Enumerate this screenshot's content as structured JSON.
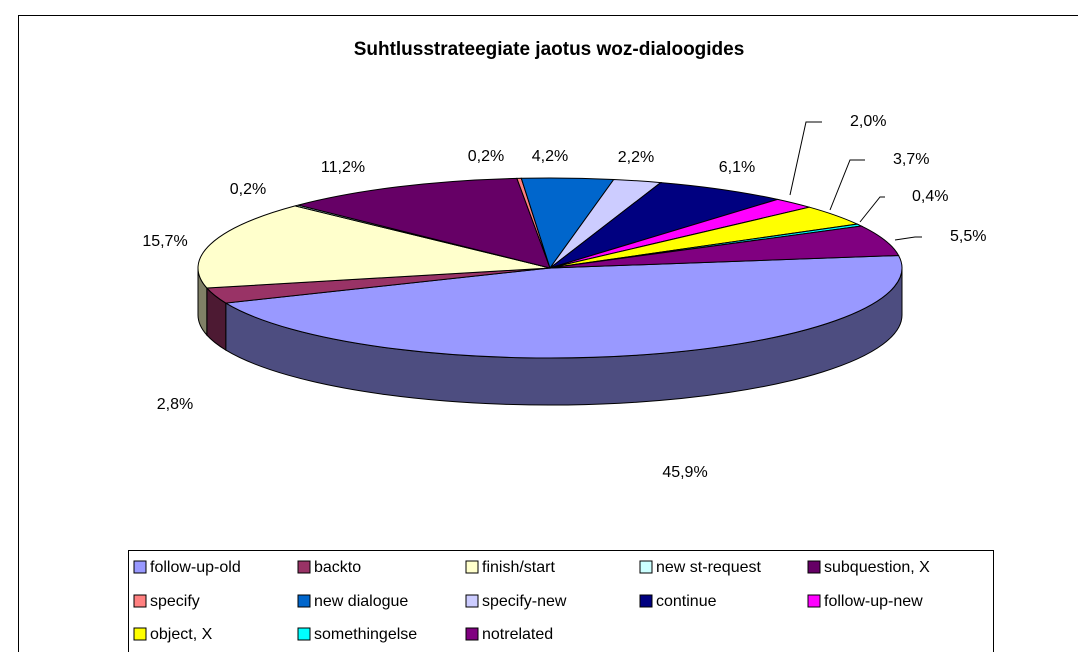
{
  "chart_data": {
    "type": "pie3d",
    "title": "Suhtlusstrateegiate jaotus woz-dialoogides",
    "categories": [
      "follow-up-old",
      "backto",
      "finish/start",
      "new st-request",
      "subquestion, X",
      "specify",
      "new dialogue",
      "specify-new",
      "continue",
      "follow-up-new",
      "object, X",
      "somethingelse",
      "notrelated"
    ],
    "values": [
      45.9,
      2.8,
      15.7,
      0.2,
      11.2,
      0.2,
      4.2,
      2.2,
      6.1,
      2.0,
      3.7,
      0.4,
      5.5
    ],
    "value_labels": [
      "45,9%",
      "2,8%",
      "15,7%",
      "0,2%",
      "11,2%",
      "0,2%",
      "4,2%",
      "2,2%",
      "6,1%",
      "2,0%",
      "3,7%",
      "0,4%",
      "5,5%"
    ],
    "colors": [
      "#9999ff",
      "#993366",
      "#ffffcc",
      "#ccffff",
      "#660066",
      "#ff8080",
      "#0066cc",
      "#ccccff",
      "#000080",
      "#ff00ff",
      "#ffff00",
      "#00ffff",
      "#800080"
    ],
    "legend": "bottom"
  }
}
